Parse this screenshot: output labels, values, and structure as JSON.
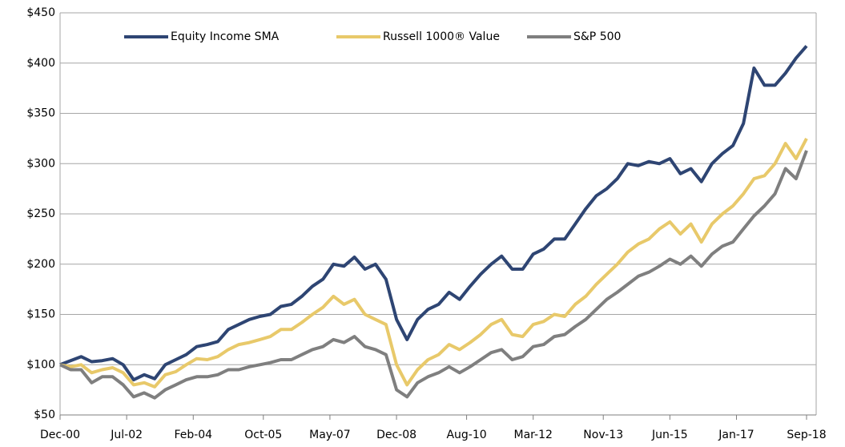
{
  "chart_data": {
    "type": "line",
    "x": [
      0,
      3,
      6,
      9,
      12,
      15,
      18,
      21,
      24,
      27,
      30,
      33,
      36,
      39,
      42,
      45,
      48,
      51,
      54,
      57,
      60,
      63,
      66,
      69,
      72,
      75,
      78,
      81,
      84,
      87,
      90,
      93,
      96,
      99,
      102,
      105,
      108,
      111,
      114,
      117,
      120,
      123,
      126,
      129,
      132,
      135,
      138,
      141,
      144,
      147,
      150,
      153,
      156,
      159,
      162,
      165,
      168,
      171,
      174,
      177,
      180,
      183,
      186,
      189,
      192,
      195,
      198,
      201,
      204,
      207,
      210,
      213
    ],
    "series": [
      {
        "name": "Equity Income SMA",
        "color": "#2e4573",
        "values": [
          100,
          104,
          108,
          103,
          104,
          106,
          100,
          85,
          90,
          86,
          100,
          105,
          110,
          118,
          120,
          123,
          135,
          140,
          145,
          148,
          150,
          158,
          160,
          168,
          178,
          185,
          200,
          198,
          207,
          195,
          200,
          185,
          145,
          125,
          145,
          155,
          160,
          172,
          165,
          178,
          190,
          200,
          208,
          195,
          195,
          210,
          215,
          225,
          225,
          240,
          255,
          268,
          275,
          285,
          300,
          298,
          302,
          300,
          305,
          290,
          295,
          282,
          300,
          310,
          318,
          340,
          395,
          378,
          378,
          390,
          405,
          417
        ]
      },
      {
        "name": "Russell 1000® Value",
        "color": "#e8c96a",
        "values": [
          100,
          98,
          100,
          92,
          95,
          97,
          92,
          80,
          82,
          78,
          90,
          93,
          100,
          106,
          105,
          108,
          115,
          120,
          122,
          125,
          128,
          135,
          135,
          142,
          150,
          157,
          168,
          160,
          165,
          150,
          145,
          140,
          100,
          80,
          95,
          105,
          110,
          120,
          115,
          122,
          130,
          140,
          145,
          130,
          128,
          140,
          143,
          150,
          148,
          160,
          168,
          180,
          190,
          200,
          212,
          220,
          225,
          235,
          242,
          230,
          240,
          222,
          240,
          250,
          258,
          270,
          285,
          288,
          300,
          320,
          305,
          325
        ]
      },
      {
        "name": "S&P 500",
        "color": "#7f7f7f",
        "values": [
          100,
          95,
          95,
          82,
          88,
          88,
          80,
          68,
          72,
          67,
          75,
          80,
          85,
          88,
          88,
          90,
          95,
          95,
          98,
          100,
          102,
          105,
          105,
          110,
          115,
          118,
          125,
          122,
          128,
          118,
          115,
          110,
          75,
          68,
          82,
          88,
          92,
          98,
          92,
          98,
          105,
          112,
          115,
          105,
          108,
          118,
          120,
          128,
          130,
          138,
          145,
          155,
          165,
          172,
          180,
          188,
          192,
          198,
          205,
          200,
          208,
          198,
          210,
          218,
          222,
          235,
          248,
          258,
          270,
          295,
          285,
          313
        ]
      }
    ],
    "xlim": [
      0,
      213
    ],
    "xticks": [
      {
        "value": 0,
        "label": "Dec-00"
      },
      {
        "value": 19,
        "label": "Jul-02"
      },
      {
        "value": 38,
        "label": "Feb-04"
      },
      {
        "value": 58,
        "label": "Oct-05"
      },
      {
        "value": 77,
        "label": "May-07"
      },
      {
        "value": 96,
        "label": "Dec-08"
      },
      {
        "value": 116,
        "label": "Aug-10"
      },
      {
        "value": 135,
        "label": "Mar-12"
      },
      {
        "value": 155,
        "label": "Nov-13"
      },
      {
        "value": 174,
        "label": "Jun-15"
      },
      {
        "value": 193,
        "label": "Jan-17"
      },
      {
        "value": 213,
        "label": "Sep-18"
      }
    ],
    "ylim": [
      50,
      450
    ],
    "yticks": [
      {
        "value": 50,
        "label": "$50"
      },
      {
        "value": 100,
        "label": "$100"
      },
      {
        "value": 150,
        "label": "$150"
      },
      {
        "value": 200,
        "label": "$200"
      },
      {
        "value": 250,
        "label": "$250"
      },
      {
        "value": 300,
        "label": "$300"
      },
      {
        "value": 350,
        "label": "$350"
      },
      {
        "value": 400,
        "label": "$400"
      },
      {
        "value": 450,
        "label": "$450"
      }
    ],
    "grid": true,
    "legend": "top"
  }
}
